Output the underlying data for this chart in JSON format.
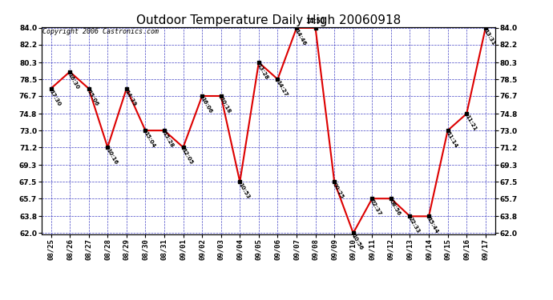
{
  "title": "Outdoor Temperature Daily High 20060918",
  "copyright": "Copyright 2006 Castronics.com",
  "dates": [
    "08/25",
    "08/26",
    "08/27",
    "08/28",
    "08/29",
    "08/30",
    "08/31",
    "09/01",
    "09/02",
    "09/03",
    "09/04",
    "09/05",
    "09/06",
    "09/07",
    "09/08",
    "09/09",
    "09/10",
    "09/11",
    "09/12",
    "09/13",
    "09/14",
    "09/15",
    "09/16",
    "09/17"
  ],
  "temps": [
    77.5,
    79.3,
    77.5,
    71.2,
    77.5,
    73.0,
    73.0,
    71.2,
    76.7,
    76.7,
    67.5,
    80.3,
    78.5,
    84.0,
    84.0,
    67.5,
    62.0,
    65.7,
    65.7,
    63.8,
    63.8,
    73.0,
    74.8,
    84.0
  ],
  "point_labels": [
    "17:30",
    "16:30",
    "15:06",
    "10:16",
    "14:39",
    "15:04",
    "15:28",
    "12:05",
    "16:06",
    "10:18",
    "10:53",
    "13:28",
    "14:27",
    "14:46",
    "14:50",
    "00:25",
    "10:56",
    "22:37",
    "08:56",
    "22:33",
    "15:44",
    "11:14",
    "11:21",
    "13:31"
  ],
  "special_label_idx": 14,
  "special_label": "14:50",
  "yticks": [
    62.0,
    63.8,
    65.7,
    67.5,
    69.3,
    71.2,
    73.0,
    74.8,
    76.7,
    78.5,
    80.3,
    82.2,
    84.0
  ],
  "ylim": [
    62.0,
    84.0
  ],
  "line_color": "#dd0000",
  "marker_color": "#000000",
  "grid_color": "#2222bb",
  "bg_color": "#ffffff",
  "title_fontsize": 11,
  "label_fontsize": 5,
  "tick_fontsize": 6.5,
  "copyright_fontsize": 6
}
